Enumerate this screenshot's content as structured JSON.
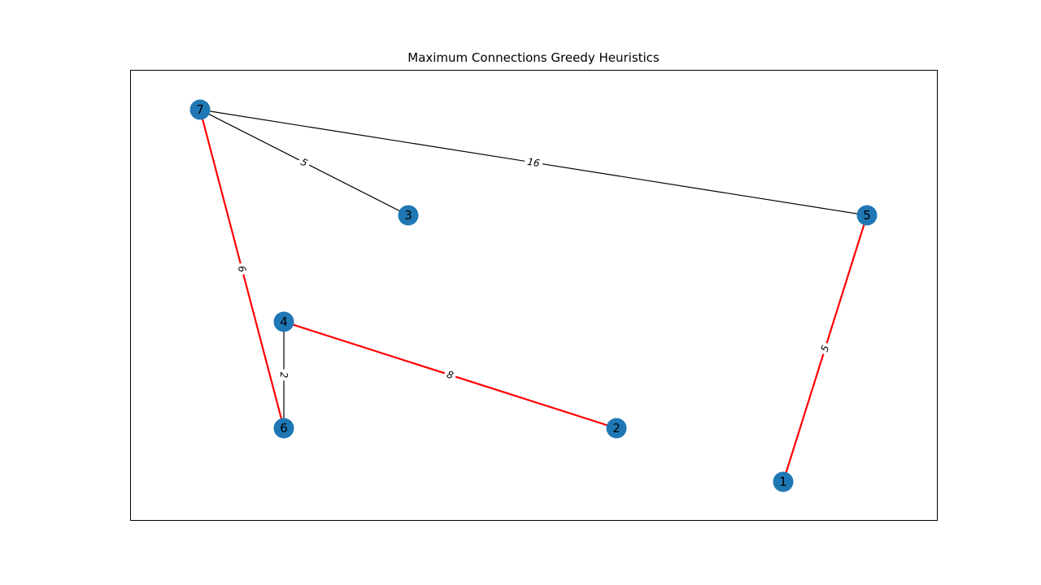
{
  "title": "Maximum Connections Greedy Heuristics",
  "colors": {
    "node": "#1f77b4",
    "edge_default": "#000000",
    "edge_highlight": "#ff0000",
    "frame": "#000000",
    "background": "#ffffff"
  },
  "nodes": [
    {
      "id": "7",
      "label": "7"
    },
    {
      "id": "3",
      "label": "3"
    },
    {
      "id": "5",
      "label": "5"
    },
    {
      "id": "4",
      "label": "4"
    },
    {
      "id": "6",
      "label": "6"
    },
    {
      "id": "2",
      "label": "2"
    },
    {
      "id": "1",
      "label": "1"
    }
  ],
  "edges": [
    {
      "source": "7",
      "target": "3",
      "weight": "5",
      "highlighted": false
    },
    {
      "source": "7",
      "target": "5",
      "weight": "16",
      "highlighted": false
    },
    {
      "source": "7",
      "target": "6",
      "weight": "6",
      "highlighted": true
    },
    {
      "source": "4",
      "target": "6",
      "weight": "2",
      "highlighted": false
    },
    {
      "source": "4",
      "target": "2",
      "weight": "8",
      "highlighted": true
    },
    {
      "source": "5",
      "target": "1",
      "weight": "5",
      "highlighted": true
    }
  ]
}
